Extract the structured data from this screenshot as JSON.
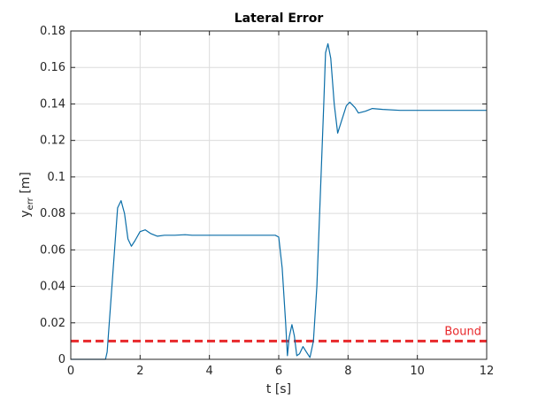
{
  "chart_data": {
    "type": "line",
    "title": "Lateral Error",
    "xlabel": "t [s]",
    "ylabel": {
      "base": "y",
      "sub": "err",
      "unit": " [m]"
    },
    "xlim": [
      0,
      12
    ],
    "ylim": [
      0,
      0.18
    ],
    "x_ticks": [
      0,
      2,
      4,
      6,
      8,
      10,
      12
    ],
    "y_ticks": [
      0,
      0.02,
      0.04,
      0.06,
      0.08,
      0.1,
      0.12,
      0.14,
      0.16,
      0.18
    ],
    "grid": true,
    "series": [
      {
        "color": "#0b6ea8",
        "x": [
          0,
          0.5,
          1.0,
          1.05,
          1.35,
          1.45,
          1.55,
          1.65,
          1.75,
          1.85,
          2.0,
          2.15,
          2.3,
          2.5,
          2.7,
          3.0,
          3.3,
          3.5,
          4.0,
          5.0,
          5.9,
          6.0,
          6.1,
          6.2,
          6.25,
          6.3,
          6.38,
          6.45,
          6.52,
          6.6,
          6.7,
          6.8,
          6.9,
          7.0,
          7.1,
          7.2,
          7.3,
          7.35,
          7.42,
          7.5,
          7.6,
          7.7,
          7.8,
          7.95,
          8.05,
          8.2,
          8.3,
          8.5,
          8.7,
          9.0,
          9.5,
          10.0,
          11.0,
          12.0
        ],
        "y": [
          0,
          0,
          0,
          0.004,
          0.083,
          0.087,
          0.08,
          0.066,
          0.062,
          0.065,
          0.07,
          0.071,
          0.069,
          0.0675,
          0.068,
          0.068,
          0.0683,
          0.068,
          0.068,
          0.068,
          0.068,
          0.067,
          0.05,
          0.02,
          0.002,
          0.012,
          0.019,
          0.013,
          0.002,
          0.003,
          0.007,
          0.004,
          0.001,
          0.01,
          0.04,
          0.09,
          0.14,
          0.168,
          0.173,
          0.165,
          0.14,
          0.124,
          0.13,
          0.139,
          0.141,
          0.138,
          0.135,
          0.136,
          0.1375,
          0.137,
          0.1365,
          0.1365,
          0.1365,
          0.1365
        ]
      },
      {
        "type": "hline",
        "y": 0.01,
        "color": "#e8282b",
        "style": "dashed",
        "label": "Bound",
        "label_position": "right"
      }
    ]
  }
}
